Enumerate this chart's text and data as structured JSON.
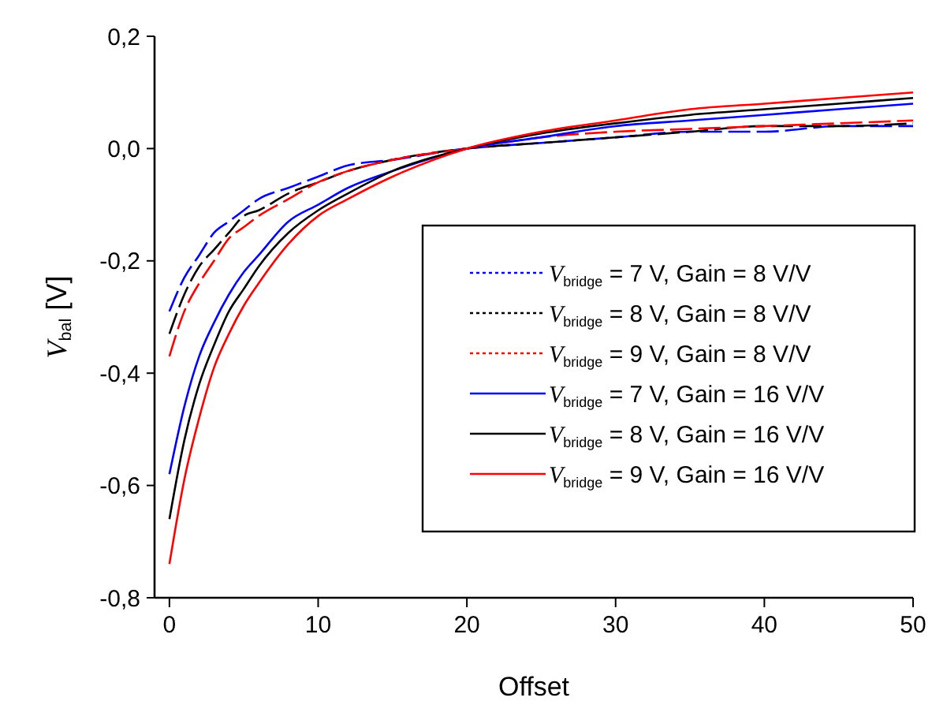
{
  "chart_data": {
    "type": "line",
    "xlabel": "Offset",
    "ylabel": "V$_{bal}$ [V]",
    "x": [
      0,
      1,
      2,
      3,
      4,
      5,
      6,
      8,
      10,
      12,
      15,
      20,
      25,
      30,
      35,
      40,
      45,
      50
    ],
    "xlim": [
      -1,
      50
    ],
    "xticks": [
      0,
      10,
      20,
      30,
      40,
      50
    ],
    "ylim": [
      -0.8,
      0.2
    ],
    "yticks": [
      {
        "value": -0.8,
        "label": "-0,8"
      },
      {
        "value": -0.6,
        "label": "-0,6"
      },
      {
        "value": -0.4,
        "label": "-0,4"
      },
      {
        "value": -0.2,
        "label": "-0,2"
      },
      {
        "value": 0,
        "label": "0,0"
      },
      {
        "value": 0.2,
        "label": "0,2"
      }
    ],
    "grid": false,
    "legend": "right",
    "marker": "none",
    "series": [
      {
        "name": "V$_{bridge}$ = 7 V, Gain = 8  V/V",
        "color": "#0000ff",
        "line_style": "dashed",
        "values": [
          -0.29,
          -0.23,
          -0.19,
          -0.15,
          -0.13,
          -0.11,
          -0.09,
          -0.07,
          -0.05,
          -0.03,
          -0.02,
          0,
          0.01,
          0.02,
          0.03,
          0.03,
          0.04,
          0.04
        ]
      },
      {
        "name": "V$_{bridge}$ = 8 V, Gain = 8 V/V",
        "color": "#000000",
        "line_style": "dashed",
        "values": [
          -0.33,
          -0.26,
          -0.21,
          -0.18,
          -0.15,
          -0.12,
          -0.11,
          -0.08,
          -0.06,
          -0.04,
          -0.02,
          0,
          0.01,
          0.02,
          0.03,
          0.04,
          0.04,
          0.045
        ]
      },
      {
        "name": "V$_{bridge}$ = 9 V, Gain = 8 V/V",
        "color": "#ff0000",
        "line_style": "dashed",
        "values": [
          -0.37,
          -0.29,
          -0.24,
          -0.2,
          -0.16,
          -0.14,
          -0.12,
          -0.09,
          -0.06,
          -0.04,
          -0.02,
          0,
          0.02,
          0.03,
          0.035,
          0.04,
          0.045,
          0.05
        ]
      },
      {
        "name": "V$_{bridge}$ = 7 V, Gain = 16 V/V",
        "color": "#0000ff",
        "line_style": "solid",
        "values": [
          -0.58,
          -0.46,
          -0.37,
          -0.31,
          -0.26,
          -0.22,
          -0.19,
          -0.13,
          -0.1,
          -0.07,
          -0.04,
          0,
          0.02,
          0.04,
          0.05,
          0.06,
          0.07,
          0.08
        ]
      },
      {
        "name": "V$_{bridge}$ = 8 V, Gain = 16 V/V",
        "color": "#000000",
        "line_style": "solid",
        "values": [
          -0.66,
          -0.52,
          -0.42,
          -0.35,
          -0.29,
          -0.25,
          -0.21,
          -0.15,
          -0.11,
          -0.08,
          -0.04,
          0,
          0.027,
          0.045,
          0.06,
          0.07,
          0.08,
          0.09
        ]
      },
      {
        "name": "V$_{bridge}$ = 9 V, Gain = 16 V/V",
        "color": "#ff0000",
        "line_style": "solid",
        "values": [
          -0.74,
          -0.59,
          -0.48,
          -0.39,
          -0.33,
          -0.28,
          -0.24,
          -0.17,
          -0.12,
          -0.09,
          -0.05,
          0,
          0.03,
          0.05,
          0.07,
          0.08,
          0.09,
          0.1
        ]
      }
    ]
  }
}
